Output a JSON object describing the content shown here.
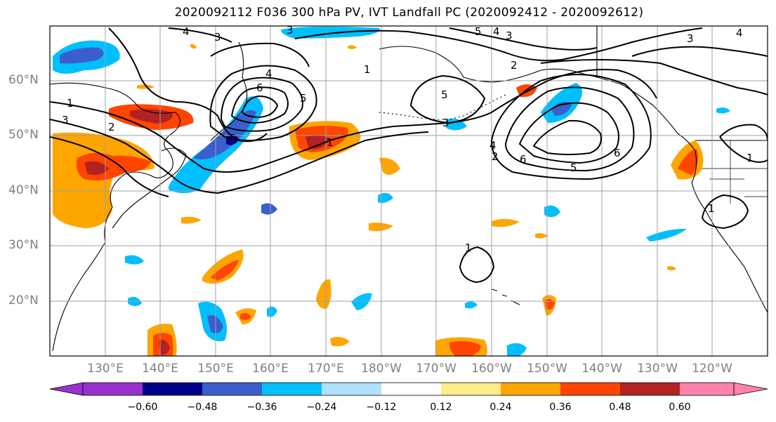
{
  "title": "2020092112 F036 300 hPa PV, IVT Landfall PC (2020092412 - 2020092612)",
  "lat_labels": [
    "60°N",
    "50°N",
    "40°N",
    "30°N",
    "20°N"
  ],
  "lon_labels": [
    "130°E",
    "140°E",
    "150°E",
    "160°E",
    "170°E",
    "180°W",
    "170°W",
    "160°W",
    "150°W",
    "140°W",
    "130°W",
    "120°W"
  ],
  "colorbar": {
    "ticks": [
      "−0.60",
      "−0.48",
      "−0.36",
      "−0.24",
      "−0.12",
      "0.12",
      "0.24",
      "0.36",
      "0.48",
      "0.60"
    ],
    "colors": [
      "#9932cc",
      "#00008b",
      "#3a5fcd",
      "#00bfff",
      "#b0e2ff",
      "#ffffff",
      "#ffec8b",
      "#ffa500",
      "#ff4500",
      "#b22222",
      "#ff82ab"
    ]
  },
  "contour_labels": [
    "1",
    "2",
    "3",
    "4",
    "5",
    "6"
  ],
  "map": {
    "lat_range": [
      10,
      70
    ],
    "lon_range": [
      120,
      250
    ],
    "projection": "PlateCarree",
    "grid": true
  }
}
